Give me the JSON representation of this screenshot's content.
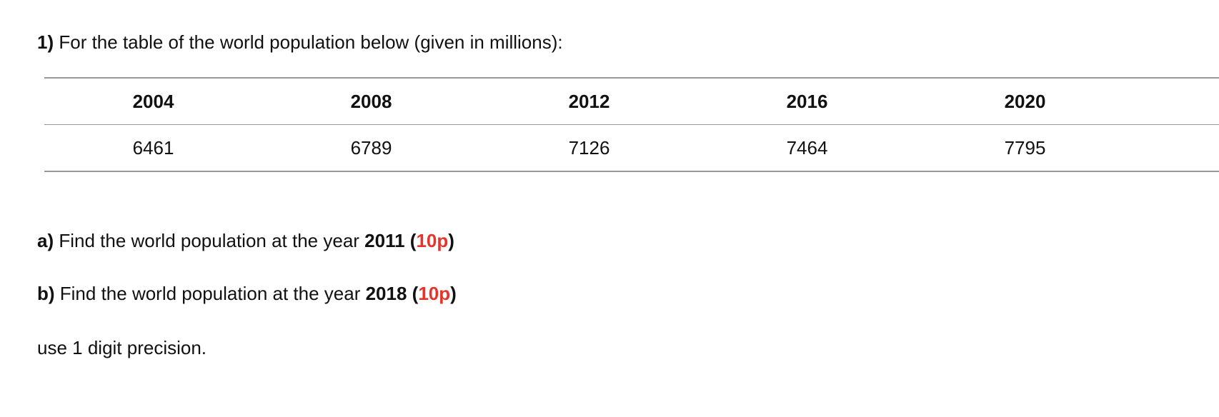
{
  "question": {
    "number": "1)",
    "text": " For the table of the world population below (given in millions):"
  },
  "table": {
    "headers": [
      "2004",
      "2008",
      "2012",
      "2016",
      "2020"
    ],
    "values": [
      "6461",
      "6789",
      "7126",
      "7464",
      "7795"
    ]
  },
  "parts": [
    {
      "label": "a)",
      "text": " Find the world population at the year ",
      "year": "2011",
      "open": " (",
      "points": "10p",
      "close": ")"
    },
    {
      "label": "b)",
      "text": " Find the world population at the year ",
      "year": "2018",
      "open": " (",
      "points": "10p",
      "close": ")"
    }
  ],
  "note": "use 1 digit precision.",
  "colors": {
    "points": "#e8332a"
  }
}
